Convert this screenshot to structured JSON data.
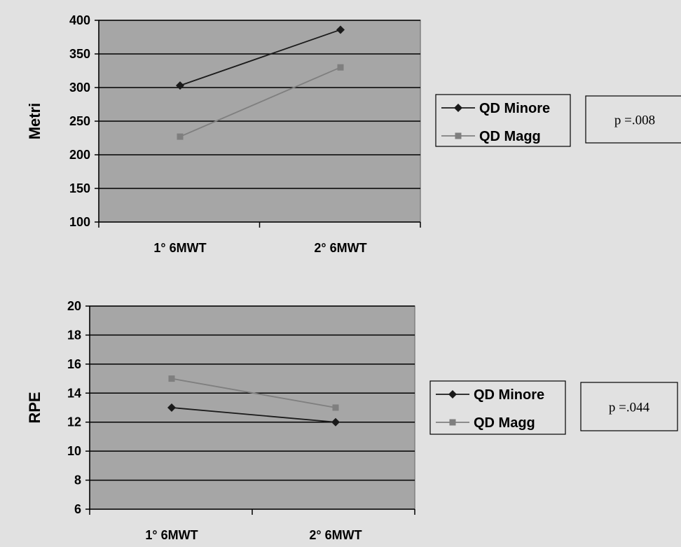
{
  "chart_data": [
    {
      "type": "line",
      "categories": [
        "1° 6MWT",
        "2° 6MWT"
      ],
      "series": [
        {
          "name": "QD Minore",
          "values": [
            303,
            386
          ],
          "color": "#1a1a1a",
          "marker": "diamond"
        },
        {
          "name": "QD Magg",
          "values": [
            227,
            330
          ],
          "color": "#7f7f7f",
          "marker": "square"
        }
      ],
      "title": "",
      "xlabel": "",
      "ylabel": "Metri",
      "ylim": [
        100,
        400
      ],
      "yticks": [
        100,
        150,
        200,
        250,
        300,
        350,
        400
      ],
      "ytick_labels": [
        "100",
        "150",
        "200",
        "250",
        "300",
        "350",
        "400"
      ],
      "grid": true,
      "plot_background": "#a6a6a6",
      "legend_position": "right",
      "annotation": "p =.008"
    },
    {
      "type": "line",
      "categories": [
        "1° 6MWT",
        "2° 6MWT"
      ],
      "series": [
        {
          "name": "QD Minore",
          "values": [
            13,
            12
          ],
          "color": "#1a1a1a",
          "marker": "diamond"
        },
        {
          "name": "QD Magg",
          "values": [
            15,
            13
          ],
          "color": "#7f7f7f",
          "marker": "square"
        }
      ],
      "title": "",
      "xlabel": "",
      "ylabel": "RPE",
      "ylim": [
        6,
        20
      ],
      "yticks": [
        6,
        8,
        10,
        12,
        14,
        16,
        18,
        20
      ],
      "ytick_labels": [
        "6",
        "8",
        "10",
        "12",
        "14",
        "16",
        "18",
        "20"
      ],
      "grid": true,
      "plot_background": "#a6a6a6",
      "legend_position": "right",
      "annotation": "p =.044"
    }
  ]
}
